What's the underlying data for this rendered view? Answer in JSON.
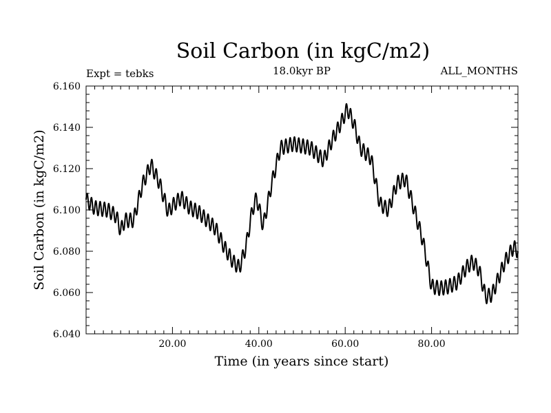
{
  "chart_data": {
    "type": "line",
    "title": "Soil Carbon (in kgC/m2)",
    "subtitle": "18.0kyr BP",
    "left_note": "Expt = tebks",
    "right_note": "ALL_MONTHS",
    "xlabel": "Time (in years since start)",
    "ylabel": "Soil Carbon (in kgC/m2)",
    "xlim": [
      0.0,
      100.0
    ],
    "ylim": [
      6.04,
      6.16
    ],
    "x_ticks": [
      20,
      40,
      60,
      80
    ],
    "x_tick_labels": [
      "20.00",
      "40.00",
      "60.00",
      "80.00"
    ],
    "y_ticks": [
      6.04,
      6.06,
      6.08,
      6.1,
      6.12,
      6.14,
      6.16
    ],
    "y_tick_labels": [
      "6.040",
      "6.060",
      "6.080",
      "6.100",
      "6.120",
      "6.140",
      "6.160"
    ],
    "seasonal_amplitude": 0.0035,
    "series": [
      {
        "name": "Soil Carbon",
        "color": "#000000",
        "trend_x": [
          0,
          2,
          5,
          7,
          8,
          9,
          11,
          13,
          15,
          17,
          19,
          20,
          22,
          24,
          26,
          28,
          30,
          32,
          34,
          35.5,
          37,
          38.5,
          39.5,
          41,
          43,
          45,
          48,
          52,
          55,
          57,
          59,
          60.5,
          62,
          63.5,
          66,
          68,
          70,
          72,
          74,
          76,
          78,
          80,
          82,
          84,
          86,
          88,
          89.5,
          91,
          92.5,
          94,
          95.5,
          97,
          99,
          100
        ],
        "trend_y": [
          6.105,
          6.101,
          6.1,
          6.097,
          6.09,
          6.095,
          6.095,
          6.112,
          6.122,
          6.113,
          6.099,
          6.102,
          6.106,
          6.101,
          6.099,
          6.095,
          6.091,
          6.082,
          6.075,
          6.072,
          6.082,
          6.1,
          6.106,
          6.092,
          6.113,
          6.13,
          6.132,
          6.13,
          6.124,
          6.134,
          6.142,
          6.149,
          6.142,
          6.13,
          6.125,
          6.103,
          6.1,
          6.113,
          6.115,
          6.1,
          6.085,
          6.063,
          6.062,
          6.063,
          6.065,
          6.072,
          6.075,
          6.071,
          6.058,
          6.059,
          6.067,
          6.075,
          6.082,
          6.08
        ]
      }
    ]
  }
}
